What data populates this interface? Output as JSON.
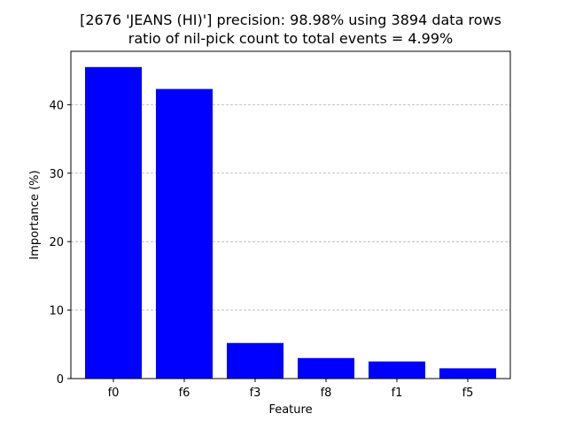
{
  "chart_data": {
    "type": "bar",
    "title": "[2676 'JEANS (HI)'] precision: 98.98% using 3894 data rows",
    "subtitle": "ratio of nil-pick count to total events = 4.99%",
    "xlabel": "Feature",
    "ylabel": "Importance (%)",
    "categories": [
      "f0",
      "f6",
      "f3",
      "f8",
      "f1",
      "f5"
    ],
    "values": [
      45.5,
      42.3,
      5.2,
      3.0,
      2.5,
      1.5
    ],
    "ylim": [
      0,
      47.8
    ],
    "yticks": [
      0,
      10,
      20,
      30,
      40
    ],
    "ytick_labels": [
      "0",
      "10",
      "20",
      "30",
      "40"
    ],
    "bar_color": "#0000ff",
    "grid": "y-dashed",
    "grid_color": "#b0b0b0",
    "legend": "none"
  }
}
